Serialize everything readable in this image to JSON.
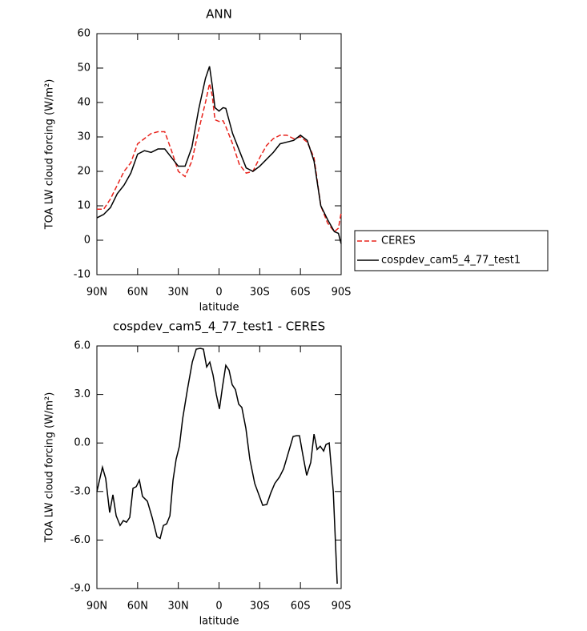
{
  "chart_data": [
    {
      "type": "line",
      "title": "ANN",
      "xlabel": "latitude",
      "ylabel": "TOA LW cloud forcing (W/m²)",
      "x": [
        90,
        85,
        80,
        75,
        70,
        65,
        60,
        55,
        50,
        45,
        40,
        35,
        30,
        25,
        20,
        15,
        10,
        7,
        5,
        3,
        0,
        -3,
        -5,
        -10,
        -15,
        -20,
        -25,
        -30,
        -35,
        -40,
        -45,
        -50,
        -55,
        -60,
        -65,
        -70,
        -75,
        -80,
        -85,
        -88,
        -90
      ],
      "series": [
        {
          "name": "CERES",
          "color": "#e8231c",
          "dash": true,
          "values": [
            9,
            9,
            12,
            16,
            20,
            22.5,
            28,
            29.5,
            31,
            31.5,
            31.5,
            26,
            20,
            18.5,
            23,
            32,
            40,
            45.5,
            42,
            35,
            34.5,
            34.7,
            33,
            28,
            22,
            19.5,
            20,
            24,
            27.5,
            29.5,
            30.5,
            30.5,
            29.5,
            30,
            28.5,
            24,
            10,
            5,
            2.5,
            3.5,
            8
          ]
        },
        {
          "name": "cospdev_cam5_4_77_test1",
          "color": "#000000",
          "dash": false,
          "values": [
            6.5,
            7.5,
            9.5,
            13.5,
            16,
            19.5,
            25,
            26,
            25.5,
            26.5,
            26.5,
            24,
            21.5,
            21.5,
            27,
            38,
            47,
            50.5,
            45,
            38.5,
            37.5,
            38.5,
            38.3,
            31,
            26,
            21,
            20,
            21.5,
            23.5,
            25.5,
            28,
            28.5,
            29,
            30.5,
            29,
            23,
            10,
            6,
            2.5,
            2,
            -1
          ]
        }
      ],
      "xlim": [
        90,
        -90
      ],
      "xticks": [
        {
          "value": 90,
          "label": "90N"
        },
        {
          "value": 60,
          "label": "60N"
        },
        {
          "value": 30,
          "label": "30N"
        },
        0,
        {
          "value": -30,
          "label": "30S"
        },
        {
          "value": -60,
          "label": "60S"
        },
        {
          "value": -90,
          "label": "90S"
        }
      ],
      "ylim": [
        -10,
        60
      ],
      "yticks": [
        -10,
        0,
        10,
        20,
        30,
        40,
        50,
        60
      ],
      "legend": "right"
    },
    {
      "type": "line",
      "title": "cospdev_cam5_4_77_test1 - CERES",
      "xlabel": "latitude",
      "ylabel": "TOA LW cloud forcing (W/m²)",
      "x": [
        90,
        85.9,
        83.5,
        80.6,
        78.2,
        75.8,
        72.9,
        70.5,
        68.2,
        65.8,
        63.4,
        61.0,
        58.7,
        56.4,
        52.8,
        49.3,
        45.7,
        43.4,
        41.0,
        38.6,
        36.2,
        33.9,
        31.6,
        29.2,
        26.8,
        23.3,
        19.7,
        16.8,
        13.8,
        11.5,
        9.1,
        6.8,
        4.4,
        2.0,
        -0.3,
        -2.6,
        -5.0,
        -7.4,
        -9.7,
        -12.1,
        -14.5,
        -16.8,
        -19.8,
        -22.7,
        -26.3,
        -29.8,
        -32.2,
        -35.2,
        -38.1,
        -41.1,
        -44.6,
        -47.6,
        -51.1,
        -54.6,
        -57.0,
        -59.3,
        -61.7,
        -64.6,
        -67.6,
        -70.0,
        -72.3,
        -74.6,
        -77.1,
        -78.8,
        -81.2,
        -84.2,
        -87.1
      ],
      "color": "#000000",
      "values": [
        -3,
        -1.5,
        -2.2,
        -4.3,
        -3.2,
        -4.5,
        -5.1,
        -4.8,
        -4.9,
        -4.6,
        -2.8,
        -2.7,
        -2.3,
        -3.3,
        -3.6,
        -4.6,
        -5.8,
        -5.9,
        -5.1,
        -5,
        -4.5,
        -2.3,
        -1,
        -0.2,
        1.5,
        3.3,
        5,
        5.8,
        5.85,
        5.8,
        4.7,
        5,
        4.2,
        3.0,
        2.1,
        3.5,
        4.8,
        4.5,
        3.6,
        3.3,
        2.4,
        2.2,
        0.9,
        -1,
        -2.5,
        -3.3,
        -3.85,
        -3.8,
        -3.1,
        -2.5,
        -2.1,
        -1.6,
        -0.6,
        0.4,
        0.45,
        0.45,
        -0.7,
        -2,
        -1.2,
        0.55,
        -0.4,
        -0.2,
        -0.5,
        -0.1,
        0,
        -3,
        -8.7
      ],
      "xlim": [
        90,
        -90
      ],
      "xticks": [
        {
          "value": 90,
          "label": "90N"
        },
        {
          "value": 60,
          "label": "60N"
        },
        {
          "value": 30,
          "label": "30N"
        },
        0,
        {
          "value": -30,
          "label": "30S"
        },
        {
          "value": -60,
          "label": "60S"
        },
        {
          "value": -90,
          "label": "90S"
        }
      ],
      "ylim": [
        -9,
        6
      ],
      "yticks": [
        {
          "value": -9,
          "label": "-9.0"
        },
        {
          "value": -6,
          "label": "-6.0"
        },
        {
          "value": -3,
          "label": "-3.0"
        },
        {
          "value": 0,
          "label": "0.0"
        },
        {
          "value": 3,
          "label": "3.0"
        },
        {
          "value": 6,
          "label": "6.0"
        }
      ]
    }
  ]
}
